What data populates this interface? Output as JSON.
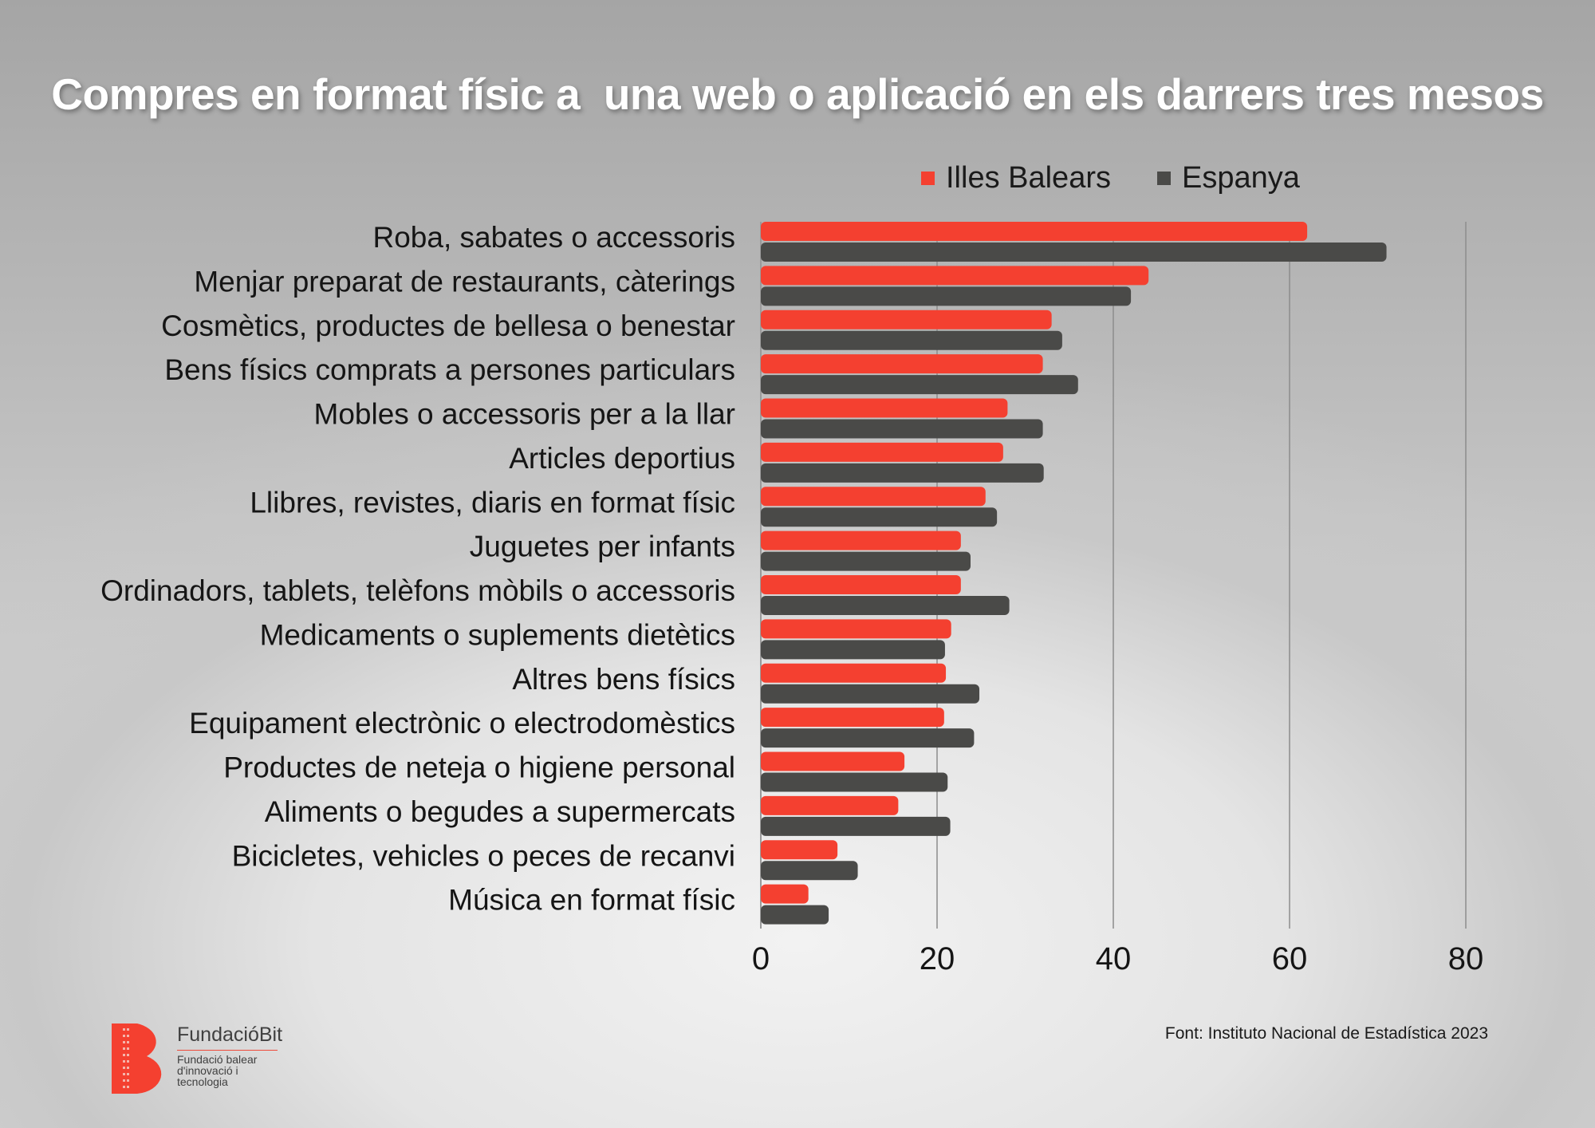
{
  "colors": {
    "balears": "#f44030",
    "espanya": "#4a4a48",
    "grid": "#8c8c8c"
  },
  "chart_data": {
    "type": "bar",
    "orientation": "horizontal",
    "title": "Compres en format físic a  una web o aplicació en els darrers tres mesos",
    "categories": [
      "Roba, sabates o accessoris",
      "Menjar preparat de restaurants, càterings",
      "Cosmètics, productes de bellesa o benestar",
      "Bens físics comprats a persones particulars",
      "Mobles o accessoris per a la llar",
      "Articles deportius",
      "Llibres, revistes, diaris en format físic",
      "Juguetes per infants",
      "Ordinadors, tablets, telèfons mòbils o accessoris",
      "Medicaments o suplements dietètics",
      "Altres bens físics",
      "Equipament electrònic o electrodomèstics",
      "Productes de neteja o higiene personal",
      "Aliments o begudes a supermercats",
      "Bicicletes, vehicles o peces de recanvi",
      "Música en format físic"
    ],
    "series": [
      {
        "name": "Illes Balears",
        "color": "#f44030",
        "values": [
          62,
          44,
          33,
          32,
          28,
          27.5,
          25.5,
          22.7,
          22.7,
          21.6,
          21,
          20.8,
          16.3,
          15.6,
          8.7,
          5.4
        ]
      },
      {
        "name": "Espanya",
        "color": "#4a4a48",
        "values": [
          71,
          42,
          34.2,
          36,
          32,
          32.1,
          26.8,
          23.8,
          28.2,
          20.9,
          24.8,
          24.2,
          21.2,
          21.5,
          11,
          7.7
        ]
      }
    ],
    "xlim": [
      0,
      80
    ],
    "xticks": [
      0,
      20,
      40,
      60,
      80
    ],
    "grid": true,
    "legend_position": "top"
  },
  "legend": {
    "items": [
      "Illes Balears",
      "Espanya"
    ]
  },
  "footer": {
    "source": "Font: Instituto Nacional de Estadística 2023",
    "logo_name": "FundacióBit",
    "logo_sub": [
      "Fundació balear",
      "d'innovació i",
      "tecnologia"
    ]
  }
}
